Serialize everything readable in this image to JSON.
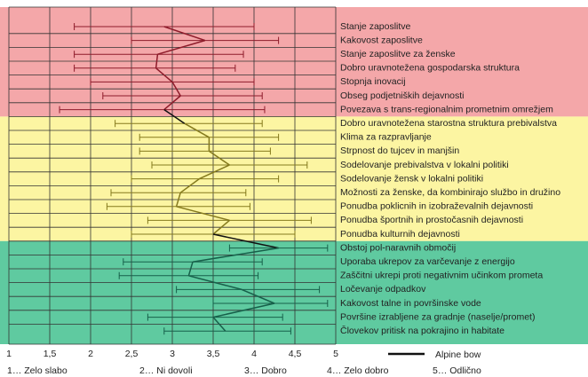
{
  "chart_data": {
    "type": "profile",
    "categories": [
      "Stanje zaposlitve",
      "Kakovost zaposlitve",
      "Stanje zaposlitve za ženske",
      "Dobro uravnotežena gospodarska struktura",
      "Stopnja inovacij",
      "Obseg podjetniških dejavnosti",
      "Povezava s trans-regionalnim prometnim omrežjem",
      "Dobro uravnotežena starostna struktura prebivalstva",
      "Klima za razpravljanje",
      "Strpnost do tujcev in manjšin",
      "Sodelovanje prebivalstva v lokalni politiki",
      "Sodelovanje žensk v lokalni politiki",
      "Možnosti za ženske, da kombinirajo službo in družino",
      "Ponudba poklicnih in izobraževalnih dejavnosti",
      "Ponudba športnih in prostočasnih dejavnosti",
      "Ponudba kulturnih dejavnosti",
      "Obstoj pol-naravnih območij",
      "Uporaba ukrepov za varčevanje z energijo",
      "Zaščitni ukrepi proti negativnim učinkom prometa",
      "Ločevanje odpadkov",
      "Kakovost talne in površinske vode",
      "Površine izrabljene za gradnje (naselje/promet)",
      "Človekov pritisk na pokrajino in habitate"
    ],
    "series": [
      {
        "name": "Alpine bow",
        "color": "#111111",
        "values": [
          2.9,
          3.4,
          2.82,
          2.8,
          3.0,
          3.1,
          2.9,
          3.15,
          3.45,
          3.45,
          3.7,
          3.33,
          3.1,
          3.05,
          3.7,
          3.5,
          4.3,
          3.25,
          3.2,
          3.85,
          4.25,
          3.5,
          3.65
        ],
        "low": [
          1.8,
          2.5,
          1.8,
          1.8,
          2.0,
          2.15,
          1.62,
          2.3,
          2.6,
          2.6,
          2.75,
          2.5,
          2.25,
          2.2,
          2.7,
          2.5,
          3.7,
          2.4,
          2.35,
          3.05,
          3.5,
          2.7,
          2.9
        ],
        "high": [
          4.0,
          4.3,
          3.87,
          3.77,
          4.0,
          4.1,
          4.13,
          4.1,
          4.3,
          4.2,
          4.65,
          4.3,
          3.9,
          3.95,
          4.7,
          4.5,
          4.9,
          4.1,
          4.05,
          4.8,
          4.9,
          4.35,
          4.45
        ]
      }
    ],
    "bands": [
      {
        "color": "#f4a7a9",
        "line_color": "#8e1b2a",
        "size": 7
      },
      {
        "color": "#fcf5a2",
        "line_color": "#857a1d",
        "size": 9
      },
      {
        "color": "#5fcaa0",
        "line_color": "#17604a",
        "size": 7
      }
    ],
    "xlim": [
      1,
      5
    ],
    "xticks": [
      1,
      {
        "value": 1.5,
        "label": "1,5"
      },
      2,
      {
        "value": 2.5,
        "label": "2,5"
      },
      3,
      {
        "value": 3.5,
        "label": "3,5"
      },
      4,
      {
        "value": 4.5,
        "label": "4,5"
      },
      5
    ],
    "grid": true,
    "legend": "bottom-right",
    "notes": [
      "1… Zelo slabo",
      "2… Ni dovoli",
      "3… Dobro",
      "4… Zelo dobro",
      "5… Odlično"
    ]
  }
}
